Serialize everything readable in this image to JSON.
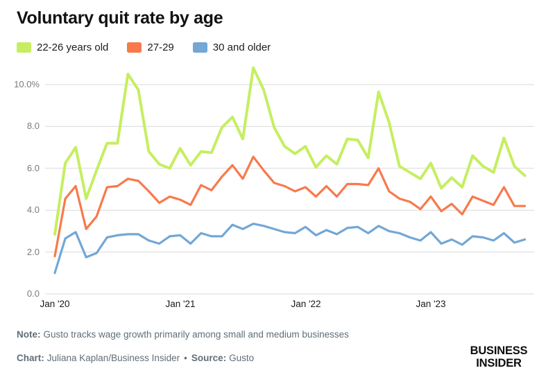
{
  "title": "Voluntary quit rate by age",
  "legend": [
    {
      "label": "22-26 years old",
      "color": "#c6ee61"
    },
    {
      "label": "27-29",
      "color": "#f8794b"
    },
    {
      "label": "30 and older",
      "color": "#72a7d7"
    }
  ],
  "chart_data": {
    "type": "line",
    "title": "Voluntary quit rate by age",
    "unit": "percent",
    "categories": [
      "Jan '20",
      "Feb '20",
      "Mar '20",
      "Apr '20",
      "May '20",
      "Jun '20",
      "Jul '20",
      "Aug '20",
      "Sep '20",
      "Oct '20",
      "Nov '20",
      "Dec '20",
      "Jan '21",
      "Feb '21",
      "Mar '21",
      "Apr '21",
      "May '21",
      "Jun '21",
      "Jul '21",
      "Aug '21",
      "Sep '21",
      "Oct '21",
      "Nov '21",
      "Dec '21",
      "Jan '22",
      "Feb '22",
      "Mar '22",
      "Apr '22",
      "May '22",
      "Jun '22",
      "Jul '22",
      "Aug '22",
      "Sep '22",
      "Oct '22",
      "Nov '22",
      "Dec '22",
      "Jan '23",
      "Feb '23",
      "Mar '23",
      "Apr '23",
      "May '23",
      "Jun '23",
      "Jul '23",
      "Aug '23",
      "Sep '23",
      "Oct '23"
    ],
    "series": [
      {
        "name": "22-26 years old",
        "color": "#c6ee61",
        "values": [
          2.85,
          6.25,
          7.0,
          4.55,
          5.9,
          7.2,
          7.2,
          10.5,
          9.75,
          6.8,
          6.2,
          6.0,
          6.95,
          6.15,
          6.8,
          6.75,
          7.95,
          8.45,
          7.4,
          10.8,
          9.75,
          7.95,
          7.05,
          6.7,
          7.05,
          6.05,
          6.6,
          6.2,
          7.4,
          7.35,
          6.5,
          9.65,
          8.2,
          6.1,
          5.8,
          5.5,
          6.25,
          5.05,
          5.55,
          5.1,
          6.6,
          6.1,
          5.8,
          7.45,
          6.1,
          5.65
        ]
      },
      {
        "name": "27-29",
        "color": "#f8794b",
        "values": [
          1.8,
          4.55,
          5.15,
          3.1,
          3.7,
          5.1,
          5.15,
          5.5,
          5.4,
          4.9,
          4.35,
          4.65,
          4.5,
          4.25,
          5.2,
          4.95,
          5.6,
          6.15,
          5.5,
          6.55,
          5.9,
          5.3,
          5.15,
          4.9,
          5.1,
          4.65,
          5.15,
          4.65,
          5.25,
          5.25,
          5.2,
          6.0,
          4.9,
          4.55,
          4.4,
          4.05,
          4.65,
          3.95,
          4.3,
          3.8,
          4.65,
          4.45,
          4.25,
          5.1,
          4.2,
          4.2
        ]
      },
      {
        "name": "30 and older",
        "color": "#72a7d7",
        "values": [
          1.0,
          2.65,
          2.95,
          1.75,
          1.95,
          2.7,
          2.8,
          2.85,
          2.85,
          2.55,
          2.4,
          2.75,
          2.8,
          2.4,
          2.9,
          2.75,
          2.75,
          3.3,
          3.1,
          3.35,
          3.25,
          3.1,
          2.95,
          2.9,
          3.2,
          2.8,
          3.05,
          2.85,
          3.15,
          3.2,
          2.9,
          3.25,
          3.0,
          2.9,
          2.7,
          2.55,
          2.95,
          2.4,
          2.6,
          2.35,
          2.75,
          2.7,
          2.55,
          2.9,
          2.45,
          2.6
        ]
      }
    ],
    "ylim": [
      0,
      10
    ],
    "yticks": [
      0,
      2,
      4,
      6,
      8,
      10
    ],
    "ytick_labels": [
      "0.0",
      "2.0",
      "4.0",
      "6.0",
      "8.0",
      "10.0%"
    ],
    "xtick_labels": [
      "Jan '20",
      "Jan '21",
      "Jan '22",
      "Jan '23"
    ],
    "xtick_month_index": [
      0,
      12,
      24,
      36
    ],
    "grid": "horizontal",
    "gridline_color": "#d9d9d9",
    "legend_position": "top-left"
  },
  "note": {
    "label": "Note:",
    "text": "Gusto tracks wage growth primarily among small and medium businesses"
  },
  "credit": {
    "chart_label": "Chart:",
    "chart_value": "Juliana Kaplan/Business Insider",
    "separator": "•",
    "source_label": "Source:",
    "source_value": "Gusto"
  },
  "logo": {
    "line1": "BUSINESS",
    "line2": "INSIDER"
  }
}
